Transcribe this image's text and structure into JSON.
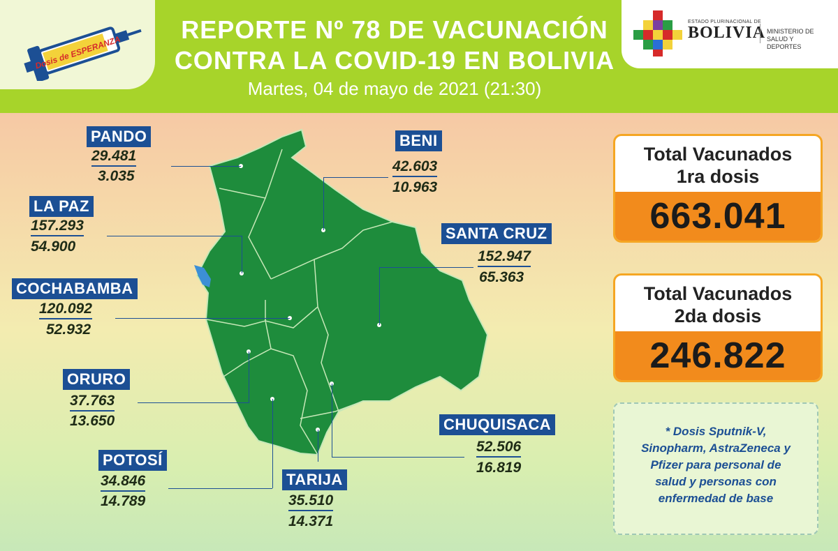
{
  "header": {
    "title_line1": "REPORTE Nº 78 DE VACUNACIÓN",
    "title_line2": "CONTRA LA COVID-19 EN BOLIVIA",
    "date": "Martes, 04 de mayo de 2021 (21:30)",
    "campaign_logo_text": "Dosis de ESPERANZA",
    "gov_small": "ESTADO PLURINACIONAL DE",
    "gov_country": "BOLIVIA",
    "gov_ministry": "MINISTERIO DE SALUD Y DEPORTES"
  },
  "departments": [
    {
      "name": "PANDO",
      "first_dose": "29.481",
      "second_dose": "3.035"
    },
    {
      "name": "BENI",
      "first_dose": "42.603",
      "second_dose": "10.963"
    },
    {
      "name": "LA PAZ",
      "first_dose": "157.293",
      "second_dose": "54.900"
    },
    {
      "name": "SANTA CRUZ",
      "first_dose": "152.947",
      "second_dose": "65.363"
    },
    {
      "name": "COCHABAMBA",
      "first_dose": "120.092",
      "second_dose": "52.932"
    },
    {
      "name": "ORURO",
      "first_dose": "37.763",
      "second_dose": "13.650"
    },
    {
      "name": "CHUQUISACA",
      "first_dose": "52.506",
      "second_dose": "16.819"
    },
    {
      "name": "POTOSÍ",
      "first_dose": "34.846",
      "second_dose": "14.789"
    },
    {
      "name": "TARIJA",
      "first_dose": "35.510",
      "second_dose": "14.371"
    }
  ],
  "totals": {
    "first": {
      "label_line1": "Total Vacunados",
      "label_line2": "1ra dosis",
      "value": "663.041"
    },
    "second": {
      "label_line1": "Total Vacunados",
      "label_line2": "2da dosis",
      "value": "246.822"
    }
  },
  "note": {
    "line1": "* Dosis Sputnik-V,",
    "line2": "Sinopharm, AstraZeneca y",
    "line3": "Pfizer para personal de",
    "line4": "salud y personas con",
    "line5": "enfermedad de base"
  },
  "colors": {
    "header_green": "#a7d42a",
    "map_green": "#1e8c3c",
    "tag_blue": "#1c4f94",
    "total_orange": "#f28b1c",
    "lake_blue": "#3c8fd6"
  }
}
